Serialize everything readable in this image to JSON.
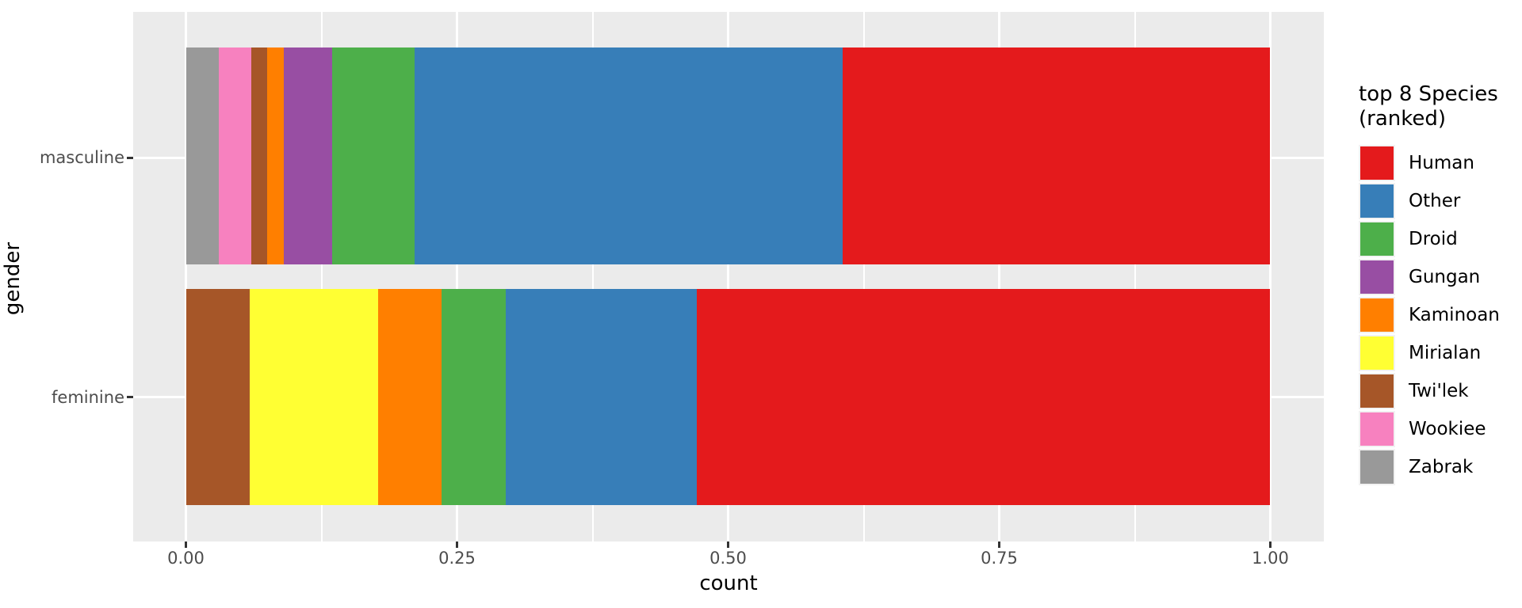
{
  "chart_data": {
    "type": "bar",
    "stacked": true,
    "orientation": "horizontal",
    "position": "fill",
    "xlabel": "count",
    "ylabel": "gender",
    "xlim": [
      0,
      1
    ],
    "x_ticks": [
      {
        "value": 0.0,
        "label": "0.00"
      },
      {
        "value": 0.25,
        "label": "0.25"
      },
      {
        "value": 0.5,
        "label": "0.50"
      },
      {
        "value": 0.75,
        "label": "0.75"
      },
      {
        "value": 1.0,
        "label": "1.00"
      }
    ],
    "x_minor_ticks": [
      0.125,
      0.375,
      0.625,
      0.875
    ],
    "categories": [
      "masculine",
      "feminine"
    ],
    "grid": true,
    "panel_background": "#EBEBEB",
    "gridline_color": "#FFFFFF",
    "tick_color": "#333333",
    "tick_label_color": "#4D4D4D",
    "legend": {
      "position": "right",
      "title": "top 8 Species\n(ranked)",
      "entries": [
        {
          "label": "Human",
          "color": "#E41A1C"
        },
        {
          "label": "Other",
          "color": "#377EB8"
        },
        {
          "label": "Droid",
          "color": "#4DAF4A"
        },
        {
          "label": "Gungan",
          "color": "#984EA3"
        },
        {
          "label": "Kaminoan",
          "color": "#FF7F00"
        },
        {
          "label": "Mirialan",
          "color": "#FFFF33"
        },
        {
          "label": "Twi'lek",
          "color": "#A65628"
        },
        {
          "label": "Wookiee",
          "color": "#F781BF"
        },
        {
          "label": "Zabrak",
          "color": "#999999"
        }
      ]
    },
    "bars": [
      {
        "category": "masculine",
        "segments": [
          {
            "species": "Zabrak",
            "fraction": 0.03
          },
          {
            "species": "Wookiee",
            "fraction": 0.03
          },
          {
            "species": "Twi'lek",
            "fraction": 0.015
          },
          {
            "species": "Kaminoan",
            "fraction": 0.015
          },
          {
            "species": "Gungan",
            "fraction": 0.045
          },
          {
            "species": "Droid",
            "fraction": 0.076
          },
          {
            "species": "Other",
            "fraction": 0.394
          },
          {
            "species": "Human",
            "fraction": 0.394
          }
        ]
      },
      {
        "category": "feminine",
        "segments": [
          {
            "species": "Twi'lek",
            "fraction": 0.059
          },
          {
            "species": "Mirialan",
            "fraction": 0.118
          },
          {
            "species": "Kaminoan",
            "fraction": 0.059
          },
          {
            "species": "Droid",
            "fraction": 0.059
          },
          {
            "species": "Other",
            "fraction": 0.176
          },
          {
            "species": "Human",
            "fraction": 0.529
          }
        ]
      }
    ]
  }
}
